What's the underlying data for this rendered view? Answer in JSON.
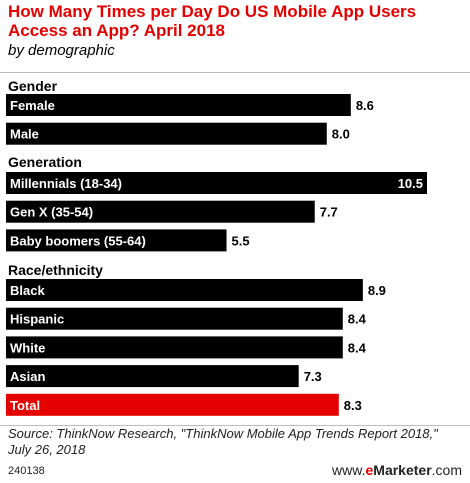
{
  "header": {
    "title": "How Many Times per Day Do US Mobile App Users Access an App? April 2018",
    "subtitle": "by demographic"
  },
  "footer": {
    "source": "Source: ThinkNow Research, \"ThinkNow Mobile App Trends Report 2018,\" July 26, 2018",
    "chart_id": "240138",
    "brand_prefix": "www.",
    "brand_e": "e",
    "brand_rest": "Marketer",
    "brand_suffix": ".com"
  },
  "colors": {
    "bar": "#000000",
    "highlight": "#e50000",
    "label_on_bar": "#ffffff"
  },
  "chart_data": {
    "type": "bar",
    "orientation": "horizontal",
    "title": "How Many Times per Day Do US Mobile App Users Access an App? April 2018",
    "subtitle": "by demographic",
    "xlim": [
      0,
      10.5
    ],
    "grid": false,
    "groups": [
      {
        "name": "Gender",
        "items": [
          {
            "label": "Female",
            "value": 8.6
          },
          {
            "label": "Male",
            "value": 8.0
          }
        ]
      },
      {
        "name": "Generation",
        "items": [
          {
            "label": "Millennials (18-34)",
            "value": 10.5
          },
          {
            "label": "Gen X (35-54)",
            "value": 7.7
          },
          {
            "label": "Baby boomers (55-64)",
            "value": 5.5
          }
        ]
      },
      {
        "name": "Race/ethnicity",
        "items": [
          {
            "label": "Black",
            "value": 8.9
          },
          {
            "label": "Hispanic",
            "value": 8.4
          },
          {
            "label": "White",
            "value": 8.4
          },
          {
            "label": "Asian",
            "value": 7.3
          },
          {
            "label": "Total",
            "value": 8.3,
            "highlight": true
          }
        ]
      }
    ]
  }
}
